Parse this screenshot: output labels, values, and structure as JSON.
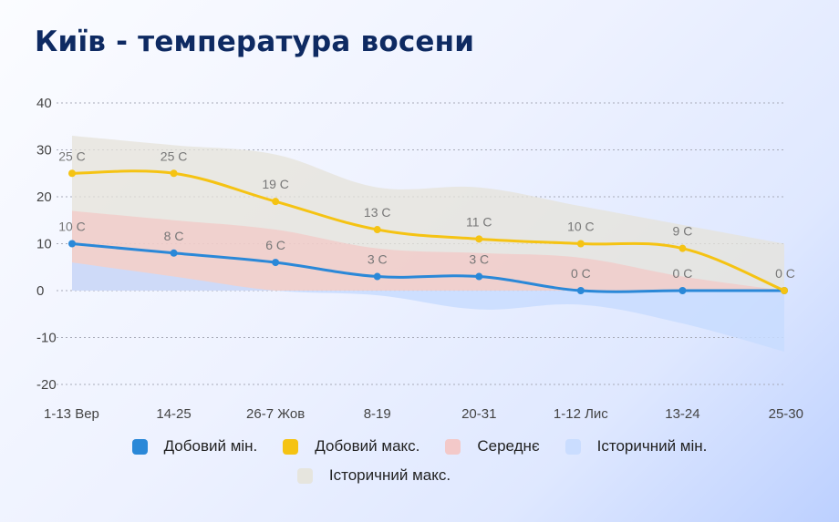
{
  "title": "Київ - температура восени",
  "chart_data": {
    "type": "line",
    "categories": [
      "1-13 Вер",
      "14-25",
      "26-7 Жов",
      "8-19",
      "20-31",
      "1-12 Лис",
      "13-24",
      "25-30"
    ],
    "ylim": [
      -20,
      40
    ],
    "yticks": [
      "40",
      "30",
      "20",
      "10",
      "0",
      "-10",
      "-20"
    ],
    "grid": true,
    "legend_position": "bottom",
    "series": [
      {
        "name": "Добовий мін.",
        "kind": "line",
        "color": "#2a88d8",
        "values": [
          10,
          8,
          6,
          3,
          3,
          0,
          0,
          0
        ],
        "labels": [
          "10 C",
          "8 C",
          "6 C",
          "3 C",
          "3 C",
          "0 C",
          "0 C",
          "0 C"
        ]
      },
      {
        "name": "Добовий макс.",
        "kind": "line",
        "color": "#f5c313",
        "values": [
          25,
          25,
          19,
          13,
          11,
          10,
          9,
          0
        ],
        "labels": [
          "25 C",
          "25 C",
          "19 C",
          "13 C",
          "11 C",
          "10 C",
          "9 C",
          ""
        ]
      },
      {
        "name": "Середнє",
        "kind": "area",
        "color": "#f4c5c3",
        "values": [
          17,
          15,
          13,
          9,
          8,
          7,
          3,
          0
        ]
      },
      {
        "name": "Історичний мін.",
        "kind": "area",
        "color": "#c8dcff",
        "values": [
          6,
          3,
          0,
          -1,
          -4,
          -3,
          -7,
          -13
        ]
      },
      {
        "name": "Історичний макс.",
        "kind": "area",
        "color": "#e6e3da",
        "values": [
          33,
          31,
          29,
          22,
          22,
          18,
          14,
          10
        ]
      }
    ]
  }
}
